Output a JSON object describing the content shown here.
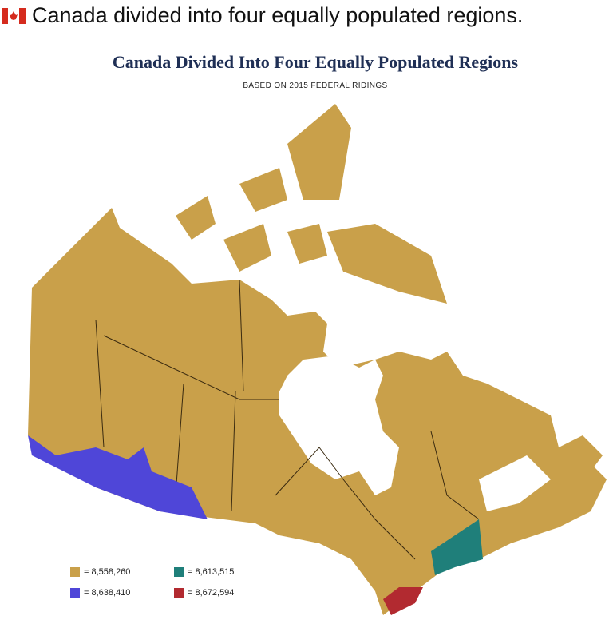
{
  "post": {
    "caption": "Canada divided into four equally populated regions."
  },
  "map": {
    "title": "Canada Divided Into Four Equally Populated Regions",
    "subtitle": "BASED ON 2015 FEDERAL RIDINGS",
    "legend": [
      {
        "label": "= 8,558,260",
        "color": "#c9a04a"
      },
      {
        "label": "= 8,613,515",
        "color": "#1f7f7a"
      },
      {
        "label": "= 8,638,410",
        "color": "#4f46d8"
      },
      {
        "label": "= 8,672,594",
        "color": "#b22a30"
      }
    ]
  }
}
